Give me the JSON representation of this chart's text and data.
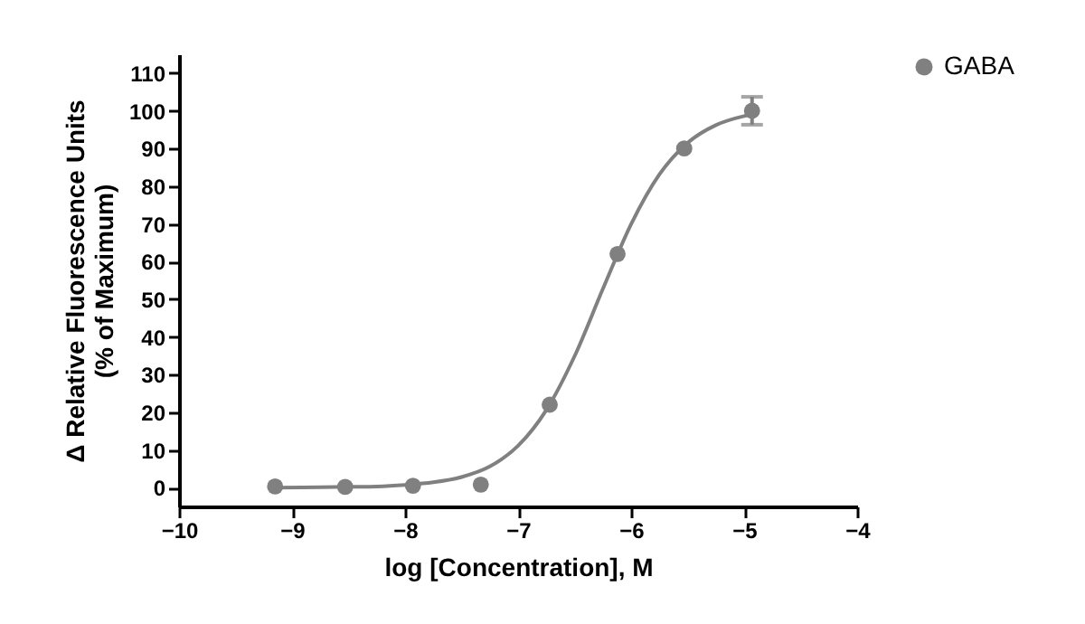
{
  "chart_data": {
    "type": "scatter",
    "xlabel": "log [Concentration], M",
    "ylabel": "Δ Relative Fluorescence Units\n(% of Maximum)",
    "xlim": [
      -10,
      -4
    ],
    "xticks": [
      -10,
      -9,
      -8,
      -7,
      -6,
      -5,
      -4
    ],
    "ylim": [
      -5,
      115
    ],
    "yticks": [
      0,
      10,
      20,
      30,
      40,
      50,
      60,
      70,
      80,
      90,
      100,
      110
    ],
    "grid": false,
    "legend": "top right",
    "series": [
      {
        "name": "GABA",
        "marker": "circle",
        "color": "#808080",
        "x": [
          -9.15,
          -8.53,
          -7.93,
          -7.33,
          -6.72,
          -6.12,
          -5.53,
          -4.93
        ],
        "values": [
          0.3,
          0.2,
          0.5,
          0.8,
          22,
          62,
          90,
          100
        ],
        "errors": [
          null,
          null,
          null,
          null,
          null,
          null,
          null,
          3.7
        ]
      },
      {
        "type": "line",
        "color": "#808080",
        "line_style": "solid",
        "marker": "none",
        "x": [
          -9.15,
          -8.75,
          -8.5,
          -8.25,
          -8,
          -7.75,
          -7.5,
          -7.25,
          -7,
          -6.75,
          -6.5,
          -6.25,
          -6,
          -5.75,
          -5.5,
          -5.25,
          -5,
          -4.9
        ],
        "values": [
          0,
          0.1,
          0.2,
          0.3,
          0.7,
          1.4,
          2.8,
          5.6,
          11.1,
          20.6,
          34.9,
          52.7,
          69.9,
          83.1,
          91.5,
          96.2,
          98.6,
          99.2
        ]
      }
    ]
  }
}
